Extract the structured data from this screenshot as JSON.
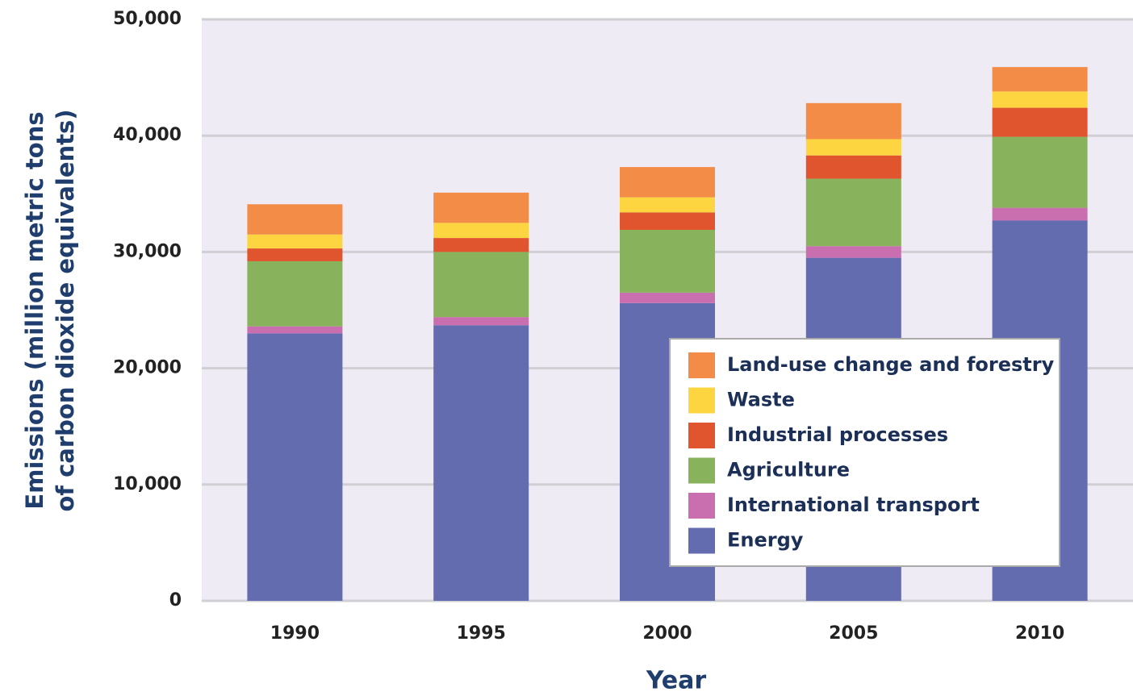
{
  "chart_data": {
    "type": "bar",
    "stacked": true,
    "xlabel": "Year",
    "ylabel": [
      "Emissions (million metric tons",
      "of carbon dioxide equivalents)"
    ],
    "categories": [
      "1990",
      "1995",
      "2000",
      "2005",
      "2010"
    ],
    "series": [
      {
        "name": "Energy",
        "color": "#646cb0",
        "values": [
          23000,
          23700,
          25600,
          29500,
          32700
        ]
      },
      {
        "name": "International transport",
        "color": "#c96fb0",
        "values": [
          600,
          700,
          900,
          1000,
          1100
        ]
      },
      {
        "name": "Agriculture",
        "color": "#88b35c",
        "values": [
          5600,
          5600,
          5400,
          5800,
          6100
        ]
      },
      {
        "name": "Industrial processes",
        "color": "#e0542e",
        "values": [
          1100,
          1200,
          1500,
          2000,
          2500
        ]
      },
      {
        "name": "Waste",
        "color": "#fdd541",
        "values": [
          1200,
          1300,
          1300,
          1400,
          1400
        ]
      },
      {
        "name": "Land-use change and forestry",
        "color": "#f28c46",
        "values": [
          2600,
          2600,
          2600,
          3100,
          2100
        ]
      }
    ],
    "ylim": [
      0,
      50000
    ],
    "yticks": [
      0,
      {
        "value": 10000,
        "label": "10,000"
      },
      {
        "value": 20000,
        "label": "20,000"
      },
      {
        "value": 30000,
        "label": "30,000"
      },
      {
        "value": 40000,
        "label": "40,000"
      },
      {
        "value": 50000,
        "label": "50,000"
      }
    ],
    "grid": true,
    "legend": "lower right"
  }
}
